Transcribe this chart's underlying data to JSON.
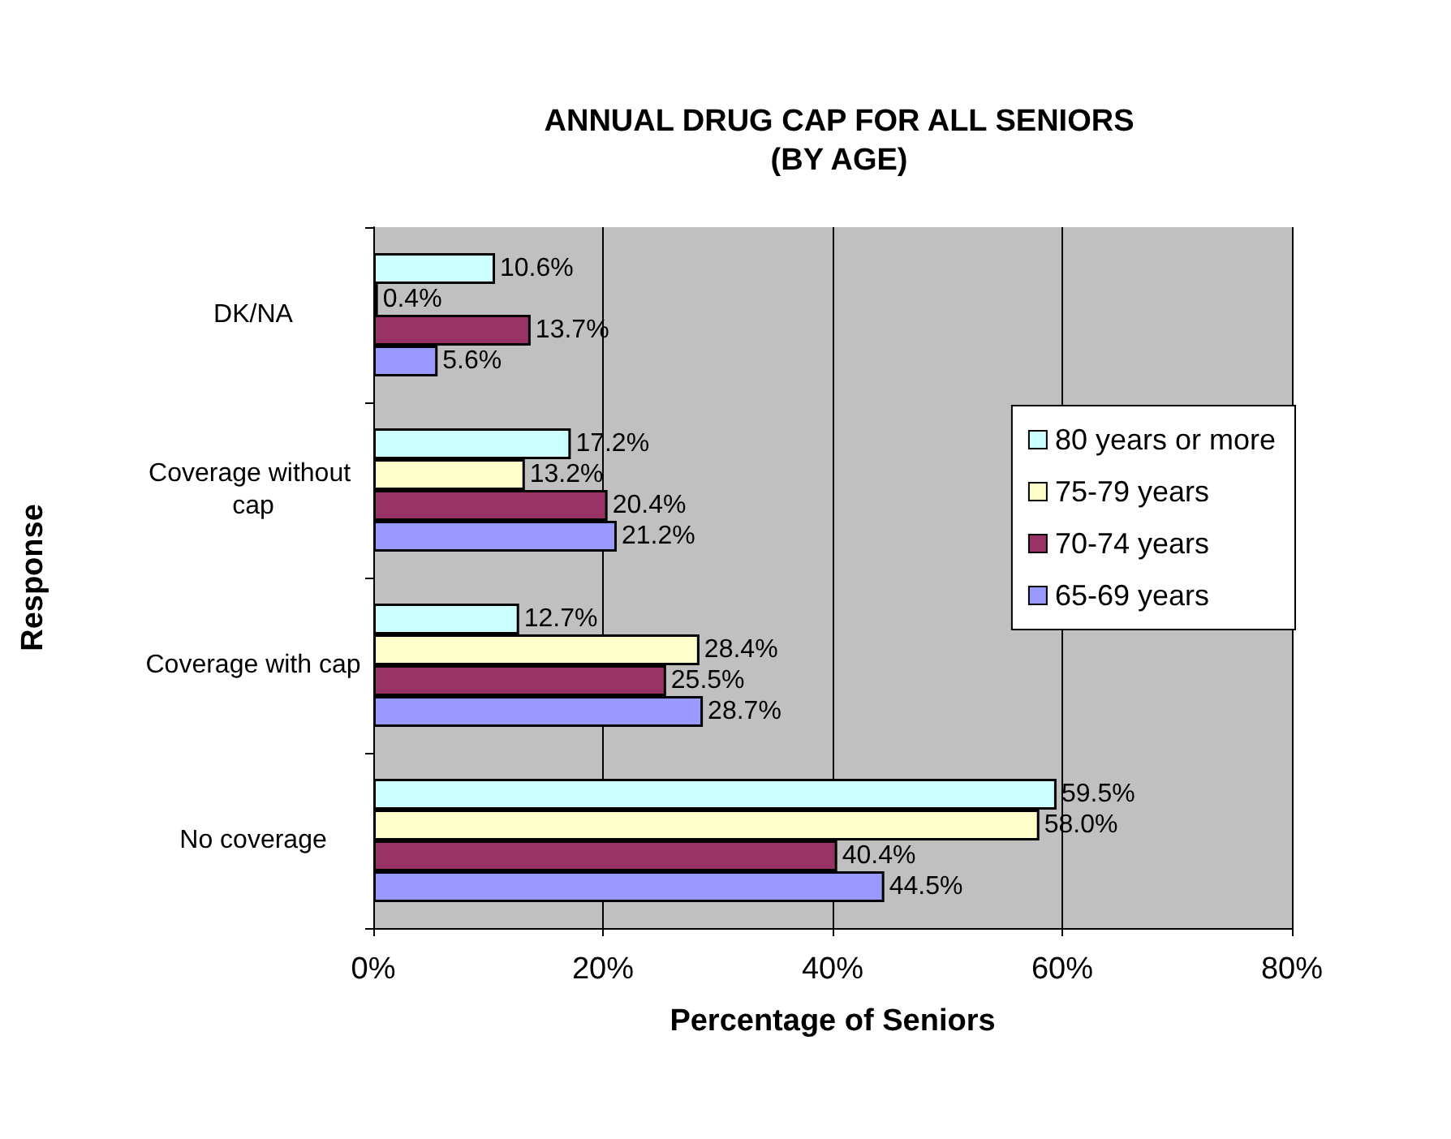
{
  "chart_data": {
    "type": "bar",
    "orientation": "horizontal",
    "title": "ANNUAL DRUG CAP FOR ALL SENIORS\n(BY AGE)",
    "xlabel": "Percentage of Seniors",
    "ylabel": "Response",
    "categories": [
      "DK/NA",
      "Coverage without cap",
      "Coverage with cap",
      "No coverage"
    ],
    "series": [
      {
        "name": "80 years or more",
        "color": "#ccffff",
        "values": [
          10.6,
          17.2,
          12.7,
          59.5
        ],
        "value_labels": [
          "10.6%",
          "17.2%",
          "12.7%",
          "59.5%"
        ]
      },
      {
        "name": "75-79 years",
        "color": "#ffffcc",
        "values": [
          0.4,
          13.2,
          28.4,
          58.0
        ],
        "value_labels": [
          "0.4%",
          "13.2%",
          "28.4%",
          "58.0%"
        ]
      },
      {
        "name": "70-74 years",
        "color": "#993366",
        "values": [
          13.7,
          20.4,
          25.5,
          40.4
        ],
        "value_labels": [
          "13.7%",
          "20.4%",
          "25.5%",
          "40.4%"
        ]
      },
      {
        "name": "65-69 years",
        "color": "#9999ff",
        "values": [
          5.6,
          21.2,
          28.7,
          44.5
        ],
        "value_labels": [
          "5.6%",
          "21.2%",
          "28.7%",
          "44.5%"
        ]
      }
    ],
    "xlim": [
      0,
      80
    ],
    "xticks": [
      {
        "value": 0,
        "label": "0%"
      },
      {
        "value": 20,
        "label": "20%"
      },
      {
        "value": 40,
        "label": "40%"
      },
      {
        "value": 60,
        "label": "60%"
      },
      {
        "value": 80,
        "label": "80%"
      }
    ],
    "grid": "x",
    "legend": "right"
  }
}
